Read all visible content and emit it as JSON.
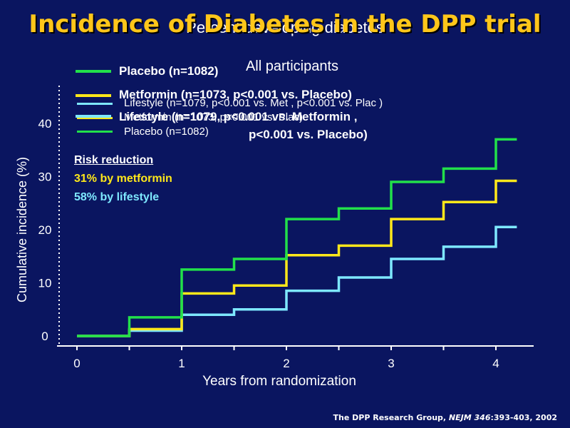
{
  "slide_title": "Incidence of Diabetes in the DPP trial",
  "citation": {
    "prefix": "The DPP Research Group, ",
    "journal": "NEJM",
    "volume": " 346",
    "suffix": ":393-403, 2002"
  },
  "legend_main": [
    {
      "label": "Placebo (n=1082)",
      "color": "#22e04a"
    },
    {
      "label": "Metformin (n=1073, p<0.001 vs. Placebo)",
      "color": "#ffe81a"
    },
    {
      "label": "Lifestyle (n=1079, p<0.001 vs. Metformin ,",
      "label_line2": "p<0.001 vs. Placebo)",
      "color": "#7ee8ff"
    }
  ],
  "legend_small": [
    {
      "label": "Lifestyle (n=1079, p<0.001 vs. Met , p<0.001 vs. Plac )",
      "color": "#7ee8ff"
    },
    {
      "label": "Metformin (n=1073, p<0.001 vs. Plac)",
      "color": "#ffe81a"
    },
    {
      "label": "Placebo (n=1082)",
      "color": "#22e04a"
    }
  ],
  "risk_reduction": {
    "heading": "Risk reduction",
    "metformin": "31% by metformin",
    "metformin_color": "#ffe81a",
    "lifestyle": "58% by lifestyle",
    "lifestyle_color": "#7ee8ff"
  },
  "chart_data": {
    "type": "line",
    "step": true,
    "title": "Percent developing diabetes",
    "subtitle": "All participants",
    "xlabel": "Years from randomization",
    "ylabel": "Cumulative incidence (%)",
    "xlim": [
      0,
      4.4
    ],
    "ylim": [
      0,
      45
    ],
    "x_ticks": [
      0,
      1,
      2,
      3,
      4
    ],
    "y_ticks": [
      0,
      10,
      20,
      30,
      40
    ],
    "series": [
      {
        "name": "Placebo (n=1082)",
        "color": "#22e04a",
        "x": [
          0,
          0.5,
          1,
          1.5,
          2,
          2.5,
          3,
          3.5,
          4,
          4.2
        ],
        "y": [
          0,
          3.5,
          12.5,
          14.5,
          22,
          24,
          29,
          31.5,
          37,
          37
        ]
      },
      {
        "name": "Metformin (n=1073, p<0.001 vs. Placebo)",
        "color": "#ffe81a",
        "x": [
          0,
          0.5,
          1,
          1.5,
          2,
          2.5,
          3,
          3.5,
          4,
          4.2
        ],
        "y": [
          0,
          1.3,
          8,
          9.5,
          15.2,
          17,
          22,
          25.2,
          29.2,
          29.2
        ]
      },
      {
        "name": "Lifestyle (n=1079, p<0.001 vs. Metformin , p<0.001 vs. Placebo)",
        "color": "#7ee8ff",
        "x": [
          0,
          0.5,
          1,
          1.5,
          2,
          2.5,
          3,
          3.5,
          4,
          4.2
        ],
        "y": [
          0,
          1,
          4,
          5,
          8.5,
          11,
          14.5,
          16.8,
          20.5,
          20.5
        ]
      }
    ],
    "grid": false,
    "background_color": "#0a1560",
    "axis_color": "#ffffff"
  }
}
